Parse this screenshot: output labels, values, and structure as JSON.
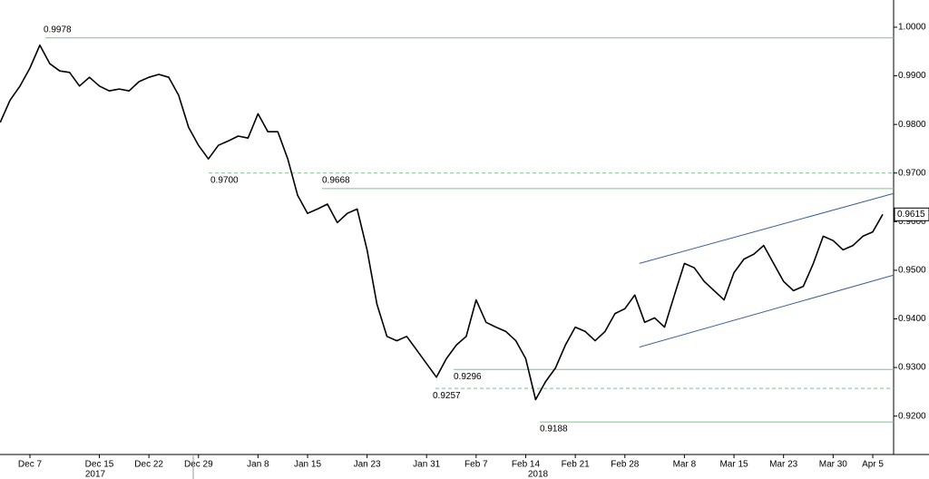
{
  "chart_data": {
    "type": "line",
    "color": "#000000",
    "values": [
      0.9804,
      0.985,
      0.9879,
      0.9916,
      0.9963,
      0.9925,
      0.991,
      0.9907,
      0.9879,
      0.9897,
      0.9879,
      0.9869,
      0.9873,
      0.9869,
      0.9888,
      0.9897,
      0.9903,
      0.9897,
      0.986,
      0.9794,
      0.9757,
      0.9729,
      0.9757,
      0.9766,
      0.9776,
      0.9772,
      0.9822,
      0.9785,
      0.9785,
      0.9729,
      0.9654,
      0.9617,
      0.9626,
      0.9636,
      0.9598,
      0.9617,
      0.9626,
      0.9542,
      0.943,
      0.9364,
      0.9355,
      0.9364,
      0.9336,
      0.9308,
      0.928,
      0.9318,
      0.9346,
      0.9364,
      0.9439,
      0.9393,
      0.9383,
      0.9374,
      0.9355,
      0.9318,
      0.9234,
      0.9271,
      0.9299,
      0.9346,
      0.9383,
      0.9374,
      0.9355,
      0.9374,
      0.9411,
      0.9421,
      0.9449,
      0.9393,
      0.9402,
      0.9383,
      0.9449,
      0.9514,
      0.9505,
      0.9477,
      0.9458,
      0.9439,
      0.9495,
      0.9523,
      0.9533,
      0.9551,
      0.9514,
      0.9477,
      0.9458,
      0.9467,
      0.9514,
      0.957,
      0.9561,
      0.9542,
      0.9551,
      0.957,
      0.9579,
      0.9615
    ],
    "categories": [
      null,
      null,
      null,
      "Dec 7",
      null,
      null,
      null,
      null,
      null,
      null,
      "Dec 15",
      null,
      null,
      null,
      null,
      "Dec 22",
      null,
      null,
      null,
      null,
      "Dec 29",
      null,
      null,
      null,
      null,
      null,
      "Jan 8",
      null,
      null,
      null,
      null,
      "Jan 15",
      null,
      null,
      null,
      null,
      null,
      "Jan 23",
      null,
      null,
      null,
      null,
      null,
      "Jan 31",
      null,
      null,
      null,
      null,
      "Feb 7",
      null,
      null,
      null,
      null,
      "Feb 14",
      null,
      null,
      null,
      null,
      "Feb 21",
      null,
      null,
      null,
      null,
      "Feb 28",
      null,
      null,
      null,
      null,
      null,
      "Mar 8",
      null,
      null,
      null,
      null,
      "Mar 15",
      null,
      null,
      null,
      null,
      "Mar 23",
      null,
      null,
      null,
      null,
      "Mar 30",
      null,
      null,
      null,
      "Apr 5",
      null
    ],
    "year_labels": [
      "2017",
      "2018"
    ],
    "ylim": [
      0.9121,
      1.0056
    ],
    "yticks": [
      {
        "value": 1,
        "label": "1.0000"
      },
      {
        "value": 0.99,
        "label": "0.9900"
      },
      {
        "value": 0.98,
        "label": "0.9800"
      },
      {
        "value": 0.97,
        "label": "0.9700"
      },
      {
        "value": 0.96,
        "label": "0.9600"
      },
      {
        "value": 0.95,
        "label": "0.9500"
      },
      {
        "value": 0.94,
        "label": "0.9400"
      },
      {
        "value": 0.93,
        "label": "0.9300"
      },
      {
        "value": 0.92,
        "label": "0.9200"
      }
    ],
    "levels": [
      {
        "value": 0.9978,
        "label": "0.9978",
        "dashed": false
      },
      {
        "value": 0.97,
        "label": "0.9700",
        "dashed": true
      },
      {
        "value": 0.9668,
        "label": "0.9668",
        "dashed": false
      },
      {
        "value": 0.9296,
        "label": "0.9296",
        "dashed": false
      },
      {
        "value": 0.9257,
        "label": "0.9257",
        "dashed": true
      },
      {
        "value": 0.9188,
        "label": "0.9188",
        "dashed": false
      }
    ],
    "level_color": "#7cc48a",
    "channel": {
      "upper": [
        0.9514,
        0.9658
      ],
      "lower": [
        0.9342,
        0.949
      ]
    },
    "channel_color": "#3d5f9a",
    "grid": false
  }
}
